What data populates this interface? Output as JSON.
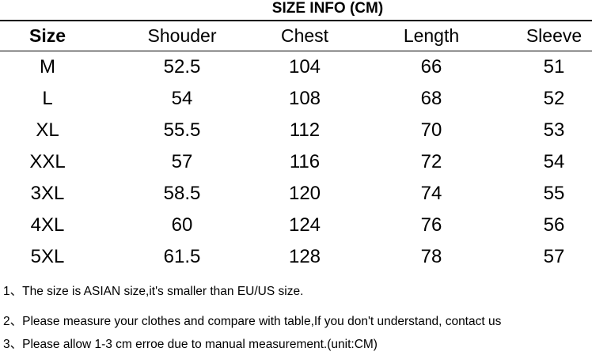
{
  "title": "SIZE INFO (CM)",
  "table": {
    "headers": [
      "Size",
      "Shouder",
      "Chest",
      "Length",
      "Sleeve"
    ],
    "rows": [
      [
        "M",
        "52.5",
        "104",
        "66",
        "51"
      ],
      [
        "L",
        "54",
        "108",
        "68",
        "52"
      ],
      [
        "XL",
        "55.5",
        "112",
        "70",
        "53"
      ],
      [
        "XXL",
        "57",
        "116",
        "72",
        "54"
      ],
      [
        "3XL",
        "58.5",
        "120",
        "74",
        "55"
      ],
      [
        "4XL",
        "60",
        "124",
        "76",
        "56"
      ],
      [
        "5XL",
        "61.5",
        "128",
        "78",
        "57"
      ]
    ]
  },
  "notes": [
    "1、The size is ASIAN size,it's smaller than EU/US size.",
    "2、Please measure your clothes and compare with table,If you don't understand, contact us",
    "3、Please allow 1-3 cm erroe due to manual measurement.(unit:CM)"
  ]
}
